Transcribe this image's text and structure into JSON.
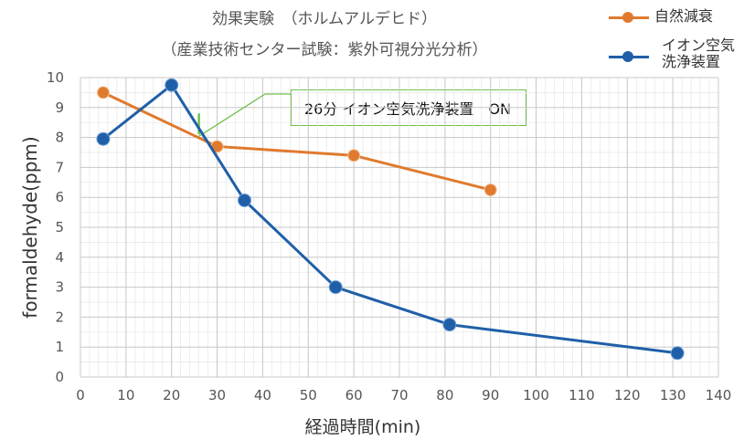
{
  "chart_data": {
    "type": "line",
    "title": "効果実験　（ホルムアルデヒド）",
    "subtitle": "（産業技術センター試験：紫外可視分光分析）",
    "xlabel": "経過時間(min)",
    "ylabel": "formaldehyde(ppm)",
    "xlim": [
      0,
      140
    ],
    "ylim": [
      0,
      10
    ],
    "xticks": [
      "0",
      "10",
      "20",
      "30",
      "40",
      "50",
      "60",
      "70",
      "80",
      "90",
      "100",
      "110",
      "120",
      "130",
      "140"
    ],
    "yticks": [
      "0",
      "1",
      "2",
      "3",
      "4",
      "5",
      "6",
      "7",
      "8",
      "9",
      "10"
    ],
    "grid": true,
    "legend_position": "top-right",
    "series": [
      {
        "name": "自然減衰",
        "color": "#e07a2e",
        "x": [
          5,
          30,
          60,
          90
        ],
        "y": [
          9.5,
          7.7,
          7.4,
          6.25
        ]
      },
      {
        "name_lines": [
          "イオン空気",
          "洗浄装置"
        ],
        "color": "#1f5fa8",
        "x": [
          5,
          20,
          36,
          56,
          81,
          131
        ],
        "y": [
          7.95,
          9.75,
          5.9,
          3.0,
          1.75,
          0.8
        ]
      }
    ],
    "annotation": {
      "text": "26分 イオン空気洗浄装置　ON",
      "x": 26,
      "y_from": 8.8,
      "y_to": 8.1,
      "color": "#6fbf4a"
    }
  }
}
